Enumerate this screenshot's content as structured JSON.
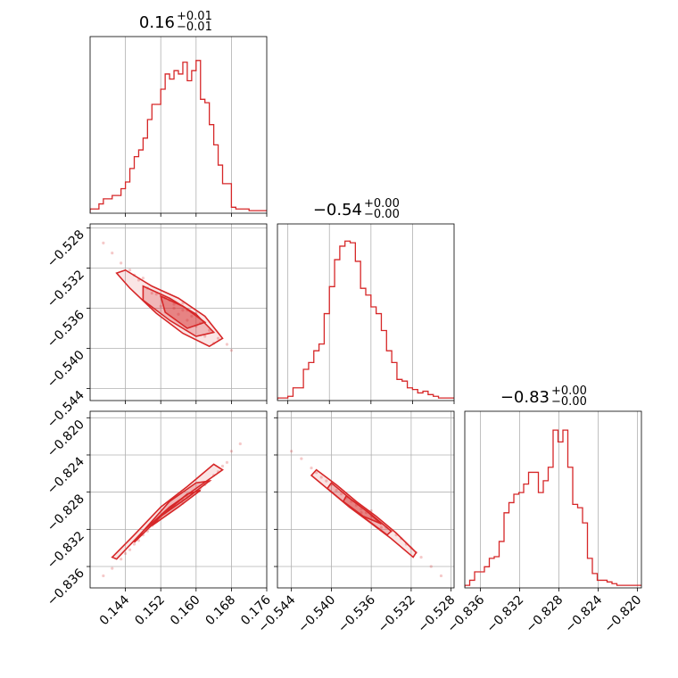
{
  "chart_data": [
    {
      "type": "histogram",
      "panel": "diag-0",
      "title": {
        "main": "0.16",
        "upper": "+0.01",
        "lower": "−0.01"
      },
      "xlim": [
        0.136,
        0.176
      ],
      "color": "#d62728",
      "bins_x": [
        0.136,
        0.137,
        0.138,
        0.139,
        0.14,
        0.141,
        0.142,
        0.143,
        0.144,
        0.145,
        0.146,
        0.147,
        0.148,
        0.149,
        0.15,
        0.151,
        0.152,
        0.153,
        0.154,
        0.155,
        0.156,
        0.157,
        0.158,
        0.159,
        0.16,
        0.161,
        0.162,
        0.163,
        0.164,
        0.165,
        0.166,
        0.167,
        0.168,
        0.169,
        0.17,
        0.171,
        0.172,
        0.173,
        0.174,
        0.175,
        0.176
      ],
      "counts": [
        0.02,
        0.02,
        0.05,
        0.08,
        0.08,
        0.1,
        0.1,
        0.14,
        0.18,
        0.26,
        0.33,
        0.37,
        0.44,
        0.55,
        0.64,
        0.64,
        0.73,
        0.82,
        0.79,
        0.84,
        0.82,
        0.89,
        0.78,
        0.84,
        0.9,
        0.67,
        0.65,
        0.52,
        0.4,
        0.28,
        0.17,
        0.17,
        0.03,
        0.02,
        0.02,
        0.02,
        0.01,
        0.01,
        0.01,
        0.01
      ]
    },
    {
      "type": "histogram",
      "panel": "diag-1",
      "title": {
        "main": "−0.54",
        "upper": "+0.00",
        "lower": "−0.00"
      },
      "xlim": [
        -0.545,
        -0.528
      ],
      "color": "#d62728",
      "bins_x": [
        -0.545,
        -0.5445,
        -0.544,
        -0.5435,
        -0.543,
        -0.5425,
        -0.542,
        -0.5415,
        -0.541,
        -0.5405,
        -0.54,
        -0.5395,
        -0.539,
        -0.5385,
        -0.538,
        -0.5375,
        -0.537,
        -0.5365,
        -0.536,
        -0.5355,
        -0.535,
        -0.5345,
        -0.534,
        -0.5335,
        -0.533,
        -0.5325,
        -0.532,
        -0.5315,
        -0.531,
        -0.5305,
        -0.53,
        -0.5295,
        -0.529,
        -0.5285,
        -0.528
      ],
      "counts": [
        0.01,
        0.01,
        0.02,
        0.07,
        0.07,
        0.18,
        0.22,
        0.29,
        0.33,
        0.51,
        0.67,
        0.83,
        0.91,
        0.94,
        0.93,
        0.82,
        0.66,
        0.62,
        0.55,
        0.51,
        0.41,
        0.29,
        0.22,
        0.12,
        0.11,
        0.07,
        0.06,
        0.04,
        0.05,
        0.03,
        0.02,
        0.01,
        0.01,
        0.01
      ]
    },
    {
      "type": "histogram",
      "panel": "diag-2",
      "title": {
        "main": "−0.83",
        "upper": "+0.00",
        "lower": "−0.00"
      },
      "xlim": [
        -0.8376,
        -0.8196
      ],
      "color": "#d62728",
      "bins_x": [
        -0.8376,
        -0.8371,
        -0.8366,
        -0.8361,
        -0.8356,
        -0.8351,
        -0.8346,
        -0.8341,
        -0.8336,
        -0.8331,
        -0.8326,
        -0.8321,
        -0.8316,
        -0.8311,
        -0.8306,
        -0.8301,
        -0.8296,
        -0.8291,
        -0.8286,
        -0.8281,
        -0.8276,
        -0.8271,
        -0.8266,
        -0.8261,
        -0.8256,
        -0.8251,
        -0.8246,
        -0.8241,
        -0.8236,
        -0.8231,
        -0.8226,
        -0.8221,
        -0.8216,
        -0.8211,
        -0.8206,
        -0.8201,
        -0.8196
      ],
      "counts": [
        0.01,
        0.04,
        0.09,
        0.09,
        0.12,
        0.17,
        0.18,
        0.27,
        0.44,
        0.5,
        0.55,
        0.56,
        0.61,
        0.68,
        0.68,
        0.56,
        0.63,
        0.71,
        0.93,
        0.86,
        0.93,
        0.71,
        0.49,
        0.47,
        0.38,
        0.17,
        0.08,
        0.04,
        0.04,
        0.03,
        0.02,
        0.01,
        0.01,
        0.01,
        0.01,
        0.01
      ]
    },
    {
      "type": "scatter",
      "panel": "scatter-1-0",
      "xlim": [
        0.136,
        0.176
      ],
      "ylim": [
        -0.5452,
        -0.5276
      ],
      "color": "#d62728",
      "relation": "negative-correlation",
      "points": [
        [
          0.139,
          -0.5295
        ],
        [
          0.141,
          -0.5305
        ],
        [
          0.143,
          -0.5315
        ],
        [
          0.145,
          -0.5322
        ],
        [
          0.147,
          -0.5332
        ],
        [
          0.149,
          -0.534
        ],
        [
          0.151,
          -0.5346
        ],
        [
          0.153,
          -0.535
        ],
        [
          0.155,
          -0.5356
        ],
        [
          0.157,
          -0.5362
        ],
        [
          0.159,
          -0.5368
        ],
        [
          0.161,
          -0.5375
        ],
        [
          0.163,
          -0.5382
        ],
        [
          0.165,
          -0.539
        ],
        [
          0.167,
          -0.5396
        ],
        [
          0.168,
          -0.5402
        ],
        [
          0.152,
          -0.5358
        ],
        [
          0.156,
          -0.5366
        ],
        [
          0.16,
          -0.5378
        ],
        [
          0.158,
          -0.5362
        ],
        [
          0.154,
          -0.5352
        ],
        [
          0.162,
          -0.5388
        ],
        [
          0.15,
          -0.5345
        ],
        [
          0.146,
          -0.5327
        ],
        [
          0.164,
          -0.5395
        ],
        [
          0.148,
          -0.533
        ],
        [
          0.158,
          -0.5372
        ],
        [
          0.16,
          -0.5365
        ],
        [
          0.155,
          -0.536
        ],
        [
          0.157,
          -0.5355
        ]
      ],
      "contours": [
        [
          [
            0.144,
            -0.5322
          ],
          [
            0.15,
            -0.5338
          ],
          [
            0.156,
            -0.535
          ],
          [
            0.162,
            -0.5368
          ],
          [
            0.166,
            -0.539
          ],
          [
            0.163,
            -0.5398
          ],
          [
            0.157,
            -0.5385
          ],
          [
            0.151,
            -0.5365
          ],
          [
            0.145,
            -0.534
          ],
          [
            0.142,
            -0.5325
          ]
        ],
        [
          [
            0.148,
            -0.5338
          ],
          [
            0.154,
            -0.535
          ],
          [
            0.16,
            -0.5366
          ],
          [
            0.164,
            -0.5384
          ],
          [
            0.16,
            -0.5388
          ],
          [
            0.154,
            -0.5372
          ],
          [
            0.148,
            -0.5352
          ]
        ],
        [
          [
            0.152,
            -0.5348
          ],
          [
            0.157,
            -0.5358
          ],
          [
            0.162,
            -0.5374
          ],
          [
            0.158,
            -0.538
          ],
          [
            0.153,
            -0.5364
          ]
        ]
      ]
    },
    {
      "type": "scatter",
      "panel": "scatter-2-0",
      "xlim": [
        0.136,
        0.176
      ],
      "ylim": [
        -0.8383,
        -0.8193
      ],
      "color": "#d62728",
      "relation": "positive-correlation",
      "points": [
        [
          0.139,
          -0.837
        ],
        [
          0.141,
          -0.8362
        ],
        [
          0.143,
          -0.8352
        ],
        [
          0.145,
          -0.8342
        ],
        [
          0.147,
          -0.8332
        ],
        [
          0.149,
          -0.8322
        ],
        [
          0.151,
          -0.8312
        ],
        [
          0.153,
          -0.8302
        ],
        [
          0.155,
          -0.8294
        ],
        [
          0.157,
          -0.8288
        ],
        [
          0.159,
          -0.8282
        ],
        [
          0.161,
          -0.8276
        ],
        [
          0.163,
          -0.8268
        ],
        [
          0.165,
          -0.8258
        ],
        [
          0.167,
          -0.8248
        ],
        [
          0.168,
          -0.8236
        ],
        [
          0.17,
          -0.8228
        ],
        [
          0.152,
          -0.8306
        ],
        [
          0.156,
          -0.829
        ],
        [
          0.16,
          -0.8279
        ],
        [
          0.148,
          -0.8326
        ],
        [
          0.154,
          -0.8298
        ],
        [
          0.158,
          -0.8285
        ],
        [
          0.162,
          -0.8272
        ],
        [
          0.146,
          -0.8336
        ],
        [
          0.15,
          -0.8316
        ],
        [
          0.164,
          -0.8262
        ],
        [
          0.144,
          -0.8346
        ],
        [
          0.166,
          -0.8252
        ],
        [
          0.157,
          -0.8292
        ]
      ],
      "contours": [
        [
          [
            0.142,
            -0.8352
          ],
          [
            0.148,
            -0.8322
          ],
          [
            0.154,
            -0.8296
          ],
          [
            0.16,
            -0.8276
          ],
          [
            0.166,
            -0.8256
          ],
          [
            0.164,
            -0.825
          ],
          [
            0.158,
            -0.8274
          ],
          [
            0.152,
            -0.8296
          ],
          [
            0.146,
            -0.8326
          ],
          [
            0.141,
            -0.835
          ]
        ],
        [
          [
            0.146,
            -0.8334
          ],
          [
            0.152,
            -0.8306
          ],
          [
            0.158,
            -0.8286
          ],
          [
            0.163,
            -0.8268
          ],
          [
            0.16,
            -0.827
          ],
          [
            0.154,
            -0.829
          ],
          [
            0.148,
            -0.8322
          ]
        ],
        [
          [
            0.15,
            -0.8316
          ],
          [
            0.156,
            -0.8296
          ],
          [
            0.161,
            -0.8278
          ],
          [
            0.158,
            -0.8282
          ],
          [
            0.152,
            -0.8306
          ]
        ]
      ]
    },
    {
      "type": "scatter",
      "panel": "scatter-2-1",
      "xlim": [
        -0.5454,
        -0.5277
      ],
      "ylim": [
        -0.8383,
        -0.8193
      ],
      "color": "#d62728",
      "relation": "negative-correlation",
      "points": [
        [
          -0.544,
          -0.8236
        ],
        [
          -0.543,
          -0.8244
        ],
        [
          -0.542,
          -0.8254
        ],
        [
          -0.541,
          -0.8264
        ],
        [
          -0.54,
          -0.8272
        ],
        [
          -0.539,
          -0.8282
        ],
        [
          -0.538,
          -0.829
        ],
        [
          -0.537,
          -0.8298
        ],
        [
          -0.536,
          -0.8306
        ],
        [
          -0.535,
          -0.8314
        ],
        [
          -0.534,
          -0.8322
        ],
        [
          -0.533,
          -0.833
        ],
        [
          -0.532,
          -0.834
        ],
        [
          -0.531,
          -0.835
        ],
        [
          -0.53,
          -0.836
        ],
        [
          -0.529,
          -0.837
        ],
        [
          -0.5375,
          -0.8294
        ],
        [
          -0.5365,
          -0.8302
        ],
        [
          -0.5355,
          -0.831
        ],
        [
          -0.5345,
          -0.8318
        ],
        [
          -0.5385,
          -0.8286
        ],
        [
          -0.5395,
          -0.8278
        ],
        [
          -0.5335,
          -0.8326
        ],
        [
          -0.5325,
          -0.8336
        ],
        [
          -0.5405,
          -0.8268
        ],
        [
          -0.5315,
          -0.8345
        ],
        [
          -0.5415,
          -0.8259
        ],
        [
          -0.537,
          -0.8302
        ],
        [
          -0.536,
          -0.83
        ],
        [
          -0.535,
          -0.8318
        ]
      ],
      "contours": [
        [
          [
            -0.5415,
            -0.8256
          ],
          [
            -0.5395,
            -0.8272
          ],
          [
            -0.5375,
            -0.829
          ],
          [
            -0.5355,
            -0.8306
          ],
          [
            -0.5335,
            -0.8324
          ],
          [
            -0.5315,
            -0.8345
          ],
          [
            -0.5318,
            -0.835
          ],
          [
            -0.534,
            -0.833
          ],
          [
            -0.5362,
            -0.8312
          ],
          [
            -0.5382,
            -0.8296
          ],
          [
            -0.5402,
            -0.8278
          ],
          [
            -0.542,
            -0.8262
          ]
        ],
        [
          [
            -0.54,
            -0.827
          ],
          [
            -0.538,
            -0.8288
          ],
          [
            -0.536,
            -0.8304
          ],
          [
            -0.534,
            -0.8322
          ],
          [
            -0.5344,
            -0.8326
          ],
          [
            -0.5364,
            -0.831
          ],
          [
            -0.5384,
            -0.8294
          ],
          [
            -0.5404,
            -0.8276
          ]
        ],
        [
          [
            -0.5385,
            -0.8284
          ],
          [
            -0.5365,
            -0.83
          ],
          [
            -0.535,
            -0.8314
          ],
          [
            -0.5368,
            -0.8306
          ],
          [
            -0.5388,
            -0.829
          ]
        ]
      ]
    }
  ],
  "axes": {
    "x_ticks_p0": [
      "0.144",
      "0.152",
      "0.160",
      "0.168",
      "0.176"
    ],
    "x_ticks_p1": [
      "−0.544",
      "−0.540",
      "−0.536",
      "−0.532",
      "−0.528"
    ],
    "x_ticks_p2": [
      "−0.836",
      "−0.832",
      "−0.828",
      "−0.824",
      "−0.820"
    ],
    "y_ticks_p1": [
      "−0.528",
      "−0.532",
      "−0.536",
      "−0.540",
      "−0.544"
    ],
    "y_ticks_p2": [
      "−0.820",
      "−0.824",
      "−0.828",
      "−0.832",
      "−0.836"
    ],
    "x_tick_values_p0": [
      0.144,
      0.152,
      0.16,
      0.168,
      0.176
    ],
    "x_tick_values_p1": [
      -0.544,
      -0.54,
      -0.536,
      -0.532,
      -0.528
    ],
    "x_tick_values_p2": [
      -0.836,
      -0.832,
      -0.828,
      -0.824,
      -0.82
    ],
    "y_tick_values_p1": [
      -0.528,
      -0.532,
      -0.536,
      -0.54,
      -0.544
    ],
    "y_tick_values_p2": [
      -0.82,
      -0.824,
      -0.828,
      -0.832,
      -0.836
    ],
    "grid": true
  }
}
